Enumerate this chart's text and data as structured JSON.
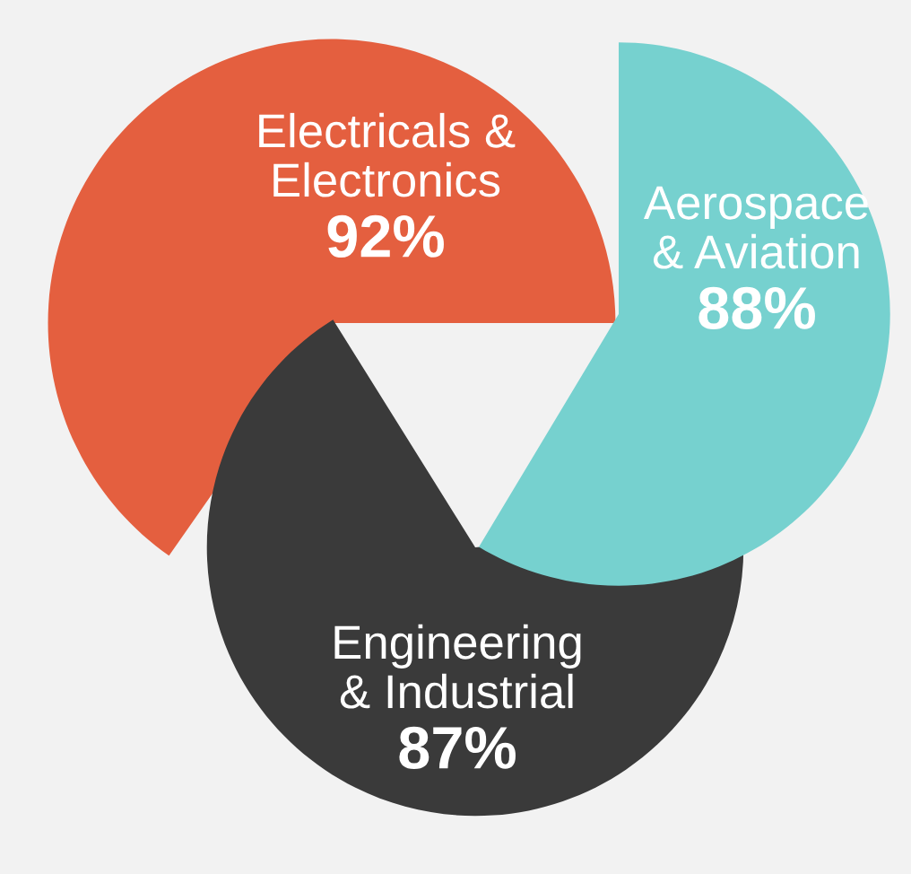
{
  "chart_data": {
    "type": "other",
    "categories": [
      "Electricals &\nElectronics",
      "Engineering\n& Industrial",
      "Aerospace\n& Aviation"
    ],
    "values": [
      92,
      87,
      88
    ],
    "value_labels": [
      "92%",
      "87%",
      "88%"
    ],
    "colors": [
      "#e45f3f",
      "#3a3a3a",
      "#76d1cf"
    ]
  }
}
